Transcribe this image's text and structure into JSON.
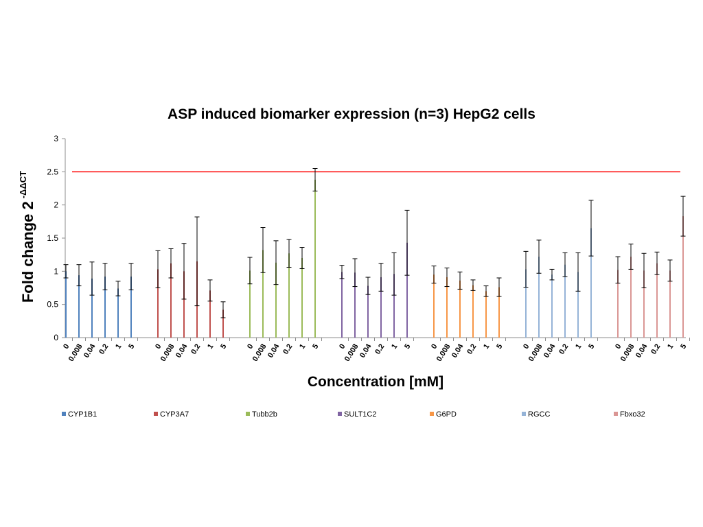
{
  "chart_data": {
    "type": "bar",
    "title": "ASP induced biomarker expression (n=3) HepG2 cells",
    "xlabel": "Concentration [mM]",
    "ylabel": "Fold change 2",
    "ylabel_superscript": "-ΔΔCT",
    "ylim": [
      0,
      3
    ],
    "yticks": [
      "0",
      "0.5",
      "1",
      "1.5",
      "2",
      "2.5",
      "3"
    ],
    "threshold": 2.5,
    "threshold_color": "#ff0000",
    "categories": [
      "0",
      "0.008",
      "0.04",
      "0.2",
      "1",
      "5"
    ],
    "series": [
      {
        "name": "CYP1B1",
        "color": "#4f81bd",
        "values": [
          1.0,
          0.94,
          0.89,
          0.92,
          0.74,
          0.92
        ],
        "errors": [
          0.1,
          0.16,
          0.25,
          0.2,
          0.11,
          0.2
        ]
      },
      {
        "name": "CYP3A7",
        "color": "#c0504d",
        "values": [
          1.03,
          1.12,
          1.0,
          1.15,
          0.71,
          0.42
        ],
        "errors": [
          0.28,
          0.22,
          0.42,
          0.67,
          0.16,
          0.12
        ]
      },
      {
        "name": "Tubb2b",
        "color": "#9bbb59",
        "values": [
          1.01,
          1.32,
          1.13,
          1.27,
          1.2,
          2.38
        ],
        "errors": [
          0.2,
          0.34,
          0.33,
          0.21,
          0.16,
          0.17
        ]
      },
      {
        "name": "SULT1C2",
        "color": "#8064a2",
        "values": [
          0.99,
          0.98,
          0.78,
          0.91,
          0.96,
          1.43
        ],
        "errors": [
          0.1,
          0.21,
          0.13,
          0.21,
          0.32,
          0.49
        ]
      },
      {
        "name": "G6PD",
        "color": "#f79646",
        "values": [
          0.95,
          0.91,
          0.86,
          0.79,
          0.7,
          0.76
        ],
        "errors": [
          0.13,
          0.14,
          0.13,
          0.08,
          0.08,
          0.14
        ]
      },
      {
        "name": "RGCC",
        "color": "#95b3d7",
        "values": [
          1.03,
          1.22,
          0.95,
          1.1,
          0.99,
          1.65
        ],
        "errors": [
          0.27,
          0.25,
          0.08,
          0.18,
          0.29,
          0.42
        ]
      },
      {
        "name": "Fbxo32",
        "color": "#da9694",
        "values": [
          1.02,
          1.22,
          1.01,
          1.12,
          1.01,
          1.83
        ],
        "errors": [
          0.2,
          0.19,
          0.26,
          0.17,
          0.16,
          0.3
        ]
      }
    ]
  }
}
